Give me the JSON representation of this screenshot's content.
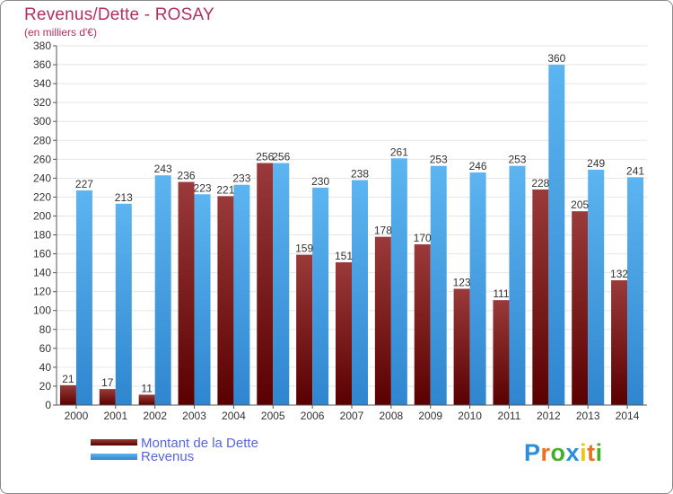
{
  "header": {
    "title": "Revenus/Dette - ROSAY",
    "subtitle": "(en milliers d'€)"
  },
  "legend": {
    "items": [
      {
        "label": "Montant de la Dette",
        "color": "#7a1010"
      },
      {
        "label": "Revenus",
        "color": "#4aa3e6"
      }
    ]
  },
  "logo": {
    "letters": [
      {
        "ch": "P",
        "color": "#2a8fd8"
      },
      {
        "ch": "r",
        "color": "#e8731f"
      },
      {
        "ch": "o",
        "color": "#43b02a"
      },
      {
        "ch": "x",
        "color": "#2a8fd8"
      },
      {
        "ch": "i",
        "color": "#e8c51f"
      },
      {
        "ch": "t",
        "color": "#e8731f"
      },
      {
        "ch": "i",
        "color": "#43b02a"
      }
    ]
  },
  "chart_data": {
    "type": "bar",
    "title": "Revenus/Dette - ROSAY",
    "subtitle": "(en milliers d'€)",
    "categories": [
      "2000",
      "2001",
      "2002",
      "2003",
      "2004",
      "2005",
      "2006",
      "2007",
      "2008",
      "2009",
      "2010",
      "2011",
      "2012",
      "2013",
      "2014"
    ],
    "series": [
      {
        "name": "Montant de la Dette",
        "color": "#7a1010",
        "values": [
          21,
          17,
          11,
          236,
          221,
          256,
          159,
          151,
          178,
          170,
          123,
          111,
          228,
          205,
          132
        ]
      },
      {
        "name": "Revenus",
        "color": "#4aa3e6",
        "values": [
          227,
          213,
          243,
          223,
          233,
          256,
          230,
          238,
          261,
          253,
          246,
          253,
          360,
          249,
          241
        ]
      }
    ],
    "ylim": [
      0,
      380
    ],
    "ytick_step": 20,
    "grid": true,
    "legend_position": "bottom-left"
  }
}
